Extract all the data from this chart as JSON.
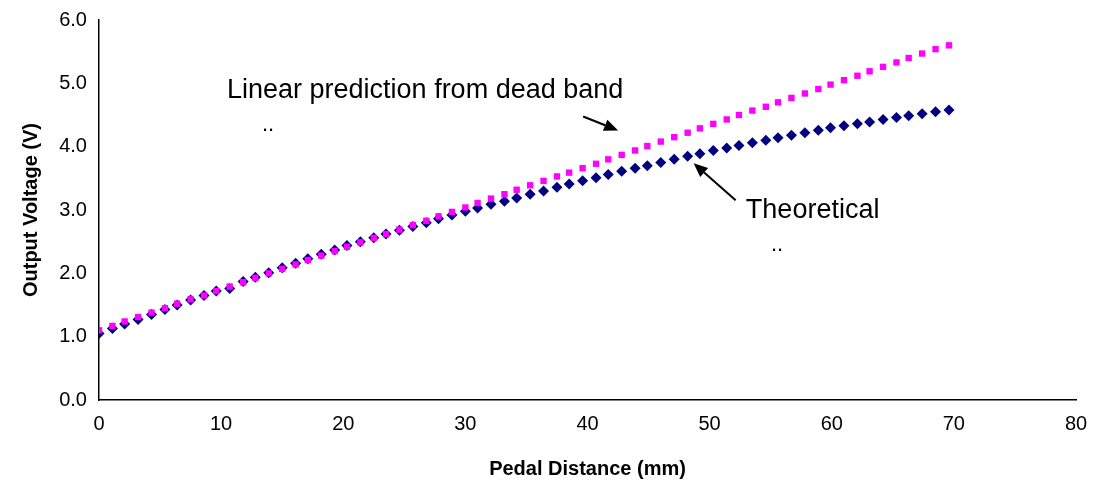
{
  "chart_data": {
    "type": "scatter",
    "xlabel": "Pedal Distance (mm)",
    "ylabel": "Output Voltage (V)",
    "x": [
      0,
      1.1,
      2.1,
      3.2,
      4.3,
      5.4,
      6.4,
      7.5,
      8.6,
      9.6,
      10.7,
      11.8,
      12.8,
      13.9,
      15.0,
      16.1,
      17.1,
      18.2,
      19.3,
      20.3,
      21.4,
      22.5,
      23.5,
      24.6,
      25.7,
      26.8,
      27.8,
      28.9,
      30.0,
      31.0,
      32.1,
      33.2,
      34.2,
      35.3,
      36.4,
      37.5,
      38.5,
      39.6,
      40.7,
      41.7,
      42.8,
      43.9,
      44.9,
      46.0,
      47.1,
      48.2,
      49.2,
      50.3,
      51.4,
      52.4,
      53.5,
      54.6,
      55.6,
      56.7,
      57.8,
      58.9,
      59.9,
      61.0,
      62.1,
      63.1,
      64.2,
      65.3,
      66.3,
      67.4,
      68.5,
      69.6
    ],
    "series": [
      {
        "color": "#ff00ff",
        "marker": "square",
        "values": [
          1.1,
          1.17,
          1.24,
          1.31,
          1.38,
          1.45,
          1.52,
          1.59,
          1.65,
          1.72,
          1.79,
          1.86,
          1.93,
          2.0,
          2.07,
          2.14,
          2.21,
          2.28,
          2.35,
          2.42,
          2.49,
          2.56,
          2.62,
          2.69,
          2.76,
          2.83,
          2.9,
          2.97,
          3.04,
          3.11,
          3.18,
          3.25,
          3.32,
          3.39,
          3.46,
          3.53,
          3.59,
          3.66,
          3.73,
          3.8,
          3.87,
          3.94,
          4.01,
          4.08,
          4.15,
          4.22,
          4.29,
          4.36,
          4.43,
          4.5,
          4.57,
          4.63,
          4.7,
          4.77,
          4.84,
          4.91,
          4.98,
          5.05,
          5.12,
          5.19,
          5.26,
          5.33,
          5.4,
          5.47,
          5.54,
          5.6
        ]
      },
      {
        "color": "#000080",
        "marker": "diamond",
        "values": [
          1.05,
          1.13,
          1.2,
          1.27,
          1.35,
          1.43,
          1.5,
          1.58,
          1.65,
          1.72,
          1.76,
          1.87,
          1.94,
          2.01,
          2.09,
          2.16,
          2.23,
          2.3,
          2.37,
          2.44,
          2.5,
          2.56,
          2.62,
          2.68,
          2.74,
          2.8,
          2.86,
          2.92,
          2.98,
          3.03,
          3.09,
          3.14,
          3.19,
          3.25,
          3.3,
          3.36,
          3.41,
          3.46,
          3.51,
          3.56,
          3.61,
          3.66,
          3.7,
          3.75,
          3.8,
          3.85,
          3.89,
          3.94,
          3.98,
          4.02,
          4.06,
          4.1,
          4.14,
          4.18,
          4.22,
          4.26,
          4.3,
          4.33,
          4.36,
          4.39,
          4.43,
          4.46,
          4.49,
          4.52,
          4.55,
          4.58
        ]
      }
    ],
    "xlim": [
      0,
      80
    ],
    "xticks": [
      0,
      10,
      20,
      30,
      40,
      50,
      60,
      70,
      80
    ],
    "ylim": [
      0,
      6
    ],
    "yticks": [
      {
        "value": 0,
        "label": "0.0"
      },
      {
        "value": 1,
        "label": "1.0"
      },
      {
        "value": 2,
        "label": "2.0"
      },
      {
        "value": 3,
        "label": "3.0"
      },
      {
        "value": 4,
        "label": "4.0"
      },
      {
        "value": 5,
        "label": "5.0"
      },
      {
        "value": 6,
        "label": "6.0"
      }
    ],
    "grid": false,
    "legend": false,
    "annotations": [
      {
        "text": "Linear prediction from dead band",
        "x": 43.9,
        "y": 3.94
      },
      "..",
      {
        "text": "Theoretical",
        "x": 48.2,
        "y": 3.85
      },
      ".."
    ]
  }
}
